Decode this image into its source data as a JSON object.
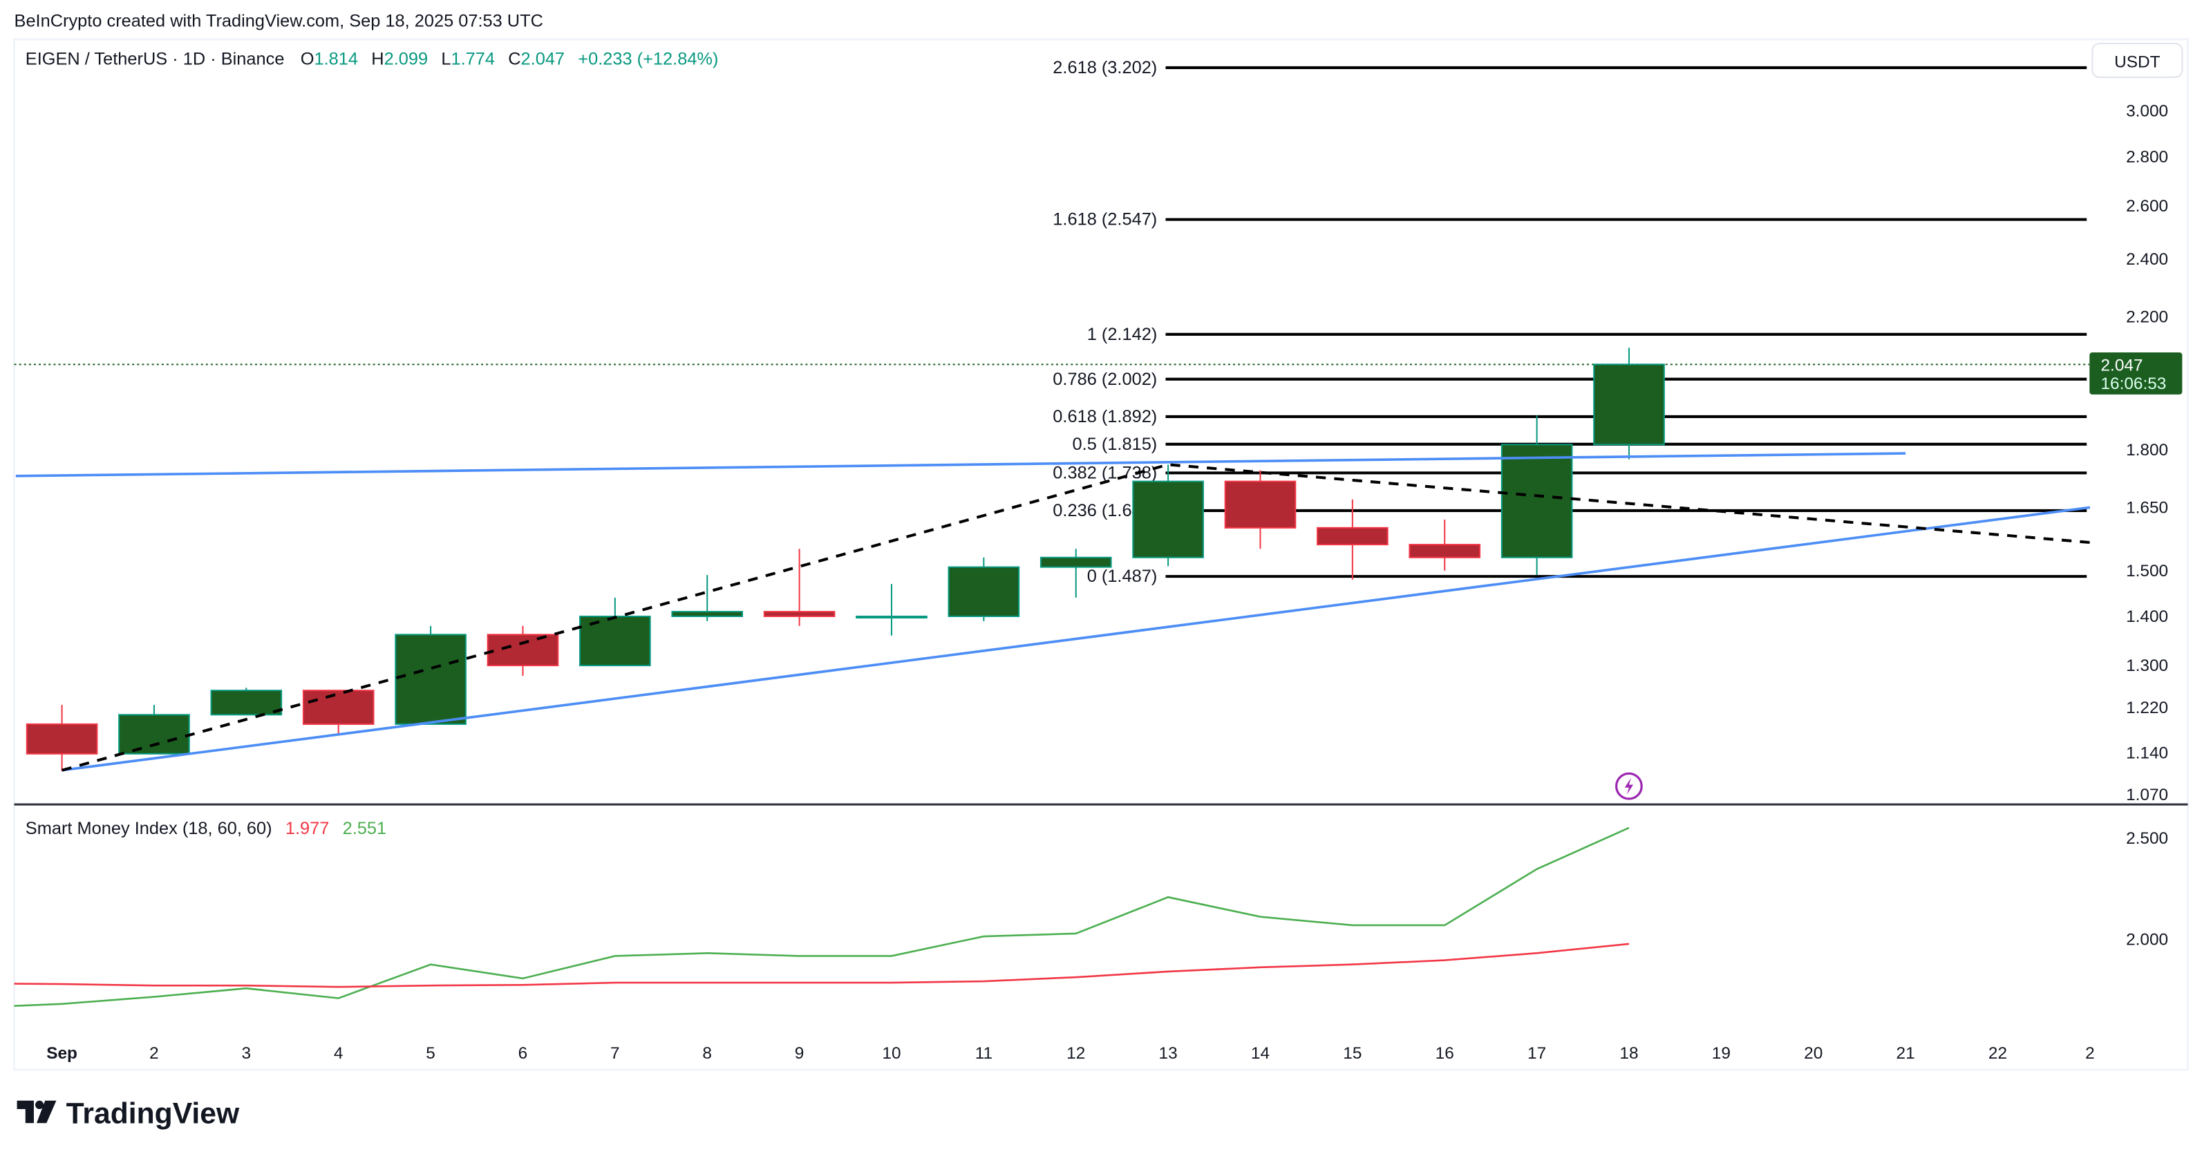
{
  "header": {
    "credit": "BeInCrypto created with TradingView.com, Sep 18, 2025 07:53 UTC"
  },
  "legend": {
    "symbol": "EIGEN / TetherUS · 1D · Binance",
    "o_label": "O",
    "o": "1.814",
    "h_label": "H",
    "h": "2.099",
    "l_label": "L",
    "l": "1.774",
    "c_label": "C",
    "c": "2.047",
    "change": "+0.233 (+12.84%)"
  },
  "price_axis": {
    "currency": "USDT",
    "last_price": "2.047",
    "countdown": "16:06:53"
  },
  "indicator": {
    "name": "Smart Money Index (18, 60, 60)",
    "value_red": "1.977",
    "value_green": "2.551"
  },
  "footer": {
    "logo": "TradingView"
  },
  "colors": {
    "up_fill": "#1b5e20",
    "up_border": "#089981",
    "down_fill": "#b22833",
    "down_border": "#f23645",
    "trendline": "#4c8df6",
    "smi_green": "#4caf50",
    "smi_red": "#f23645",
    "legend_green": "#089981",
    "event_icon": "#9c27b0"
  },
  "event_icon": "lightning-icon",
  "chart_data": [
    {
      "type": "candlestick",
      "scale": "log",
      "ylim": [
        1.07,
        3.3
      ],
      "x_tick_labels": [
        "Sep",
        "2",
        "3",
        "4",
        "5",
        "6",
        "7",
        "8",
        "9",
        "10",
        "11",
        "12",
        "13",
        "14",
        "15",
        "16",
        "17",
        "18",
        "19",
        "20",
        "21",
        "22",
        "2"
      ],
      "y_tick_labels": [
        "3.000",
        "2.800",
        "2.600",
        "2.400",
        "2.200",
        "1.800",
        "1.650",
        "1.500",
        "1.400",
        "1.300",
        "1.220",
        "1.140",
        "1.070"
      ],
      "y_ticks": [
        3.0,
        2.8,
        2.6,
        2.4,
        2.2,
        1.8,
        1.65,
        1.5,
        1.4,
        1.3,
        1.22,
        1.14,
        1.07
      ],
      "candles": [
        {
          "day": 1,
          "o": 1.19,
          "h": 1.225,
          "l": 1.109,
          "c": 1.138
        },
        {
          "day": 2,
          "o": 1.138,
          "h": 1.225,
          "l": 1.138,
          "c": 1.207
        },
        {
          "day": 3,
          "o": 1.207,
          "h": 1.257,
          "l": 1.207,
          "c": 1.252
        },
        {
          "day": 4,
          "o": 1.252,
          "h": 1.252,
          "l": 1.17,
          "c": 1.19
        },
        {
          "day": 5,
          "o": 1.19,
          "h": 1.38,
          "l": 1.19,
          "c": 1.362
        },
        {
          "day": 6,
          "o": 1.362,
          "h": 1.38,
          "l": 1.28,
          "c": 1.3
        },
        {
          "day": 7,
          "o": 1.3,
          "h": 1.44,
          "l": 1.3,
          "c": 1.4
        },
        {
          "day": 8,
          "o": 1.4,
          "h": 1.49,
          "l": 1.39,
          "c": 1.41
        },
        {
          "day": 9,
          "o": 1.41,
          "h": 1.55,
          "l": 1.38,
          "c": 1.4
        },
        {
          "day": 10,
          "o": 1.4,
          "h": 1.47,
          "l": 1.36,
          "c": 1.4
        },
        {
          "day": 11,
          "o": 1.4,
          "h": 1.53,
          "l": 1.39,
          "c": 1.508
        },
        {
          "day": 12,
          "o": 1.508,
          "h": 1.55,
          "l": 1.44,
          "c": 1.53
        },
        {
          "day": 13,
          "o": 1.53,
          "h": 1.76,
          "l": 1.51,
          "c": 1.716
        },
        {
          "day": 14,
          "o": 1.716,
          "h": 1.745,
          "l": 1.55,
          "c": 1.6
        },
        {
          "day": 15,
          "o": 1.6,
          "h": 1.67,
          "l": 1.48,
          "c": 1.56
        },
        {
          "day": 16,
          "o": 1.56,
          "h": 1.62,
          "l": 1.5,
          "c": 1.53
        },
        {
          "day": 17,
          "o": 1.53,
          "h": 1.895,
          "l": 1.49,
          "c": 1.814
        },
        {
          "day": 18,
          "o": 1.814,
          "h": 2.099,
          "l": 1.774,
          "c": 2.047
        }
      ],
      "fib_levels": [
        {
          "label": "2.618 (3.202)",
          "price": 3.202
        },
        {
          "label": "1.618 (2.547)",
          "price": 2.547
        },
        {
          "label": "1 (2.142)",
          "price": 2.142
        },
        {
          "label": "0.786 (2.002)",
          "price": 2.002
        },
        {
          "label": "0.618 (1.892)",
          "price": 1.892
        },
        {
          "label": "0.5 (1.815)",
          "price": 1.815
        },
        {
          "label": "0.382 (1.738)",
          "price": 1.738
        },
        {
          "label": "0.236 (1.642)",
          "price": 1.642
        },
        {
          "label": "0 (1.487)",
          "price": 1.487
        }
      ],
      "trendlines": [
        {
          "style": "solid",
          "color": "#4c8df6",
          "points": [
            [
              0.5,
              1.73
            ],
            [
              21,
              1.79
            ]
          ]
        },
        {
          "style": "solid",
          "color": "#4c8df6",
          "points": [
            [
              1,
              1.11
            ],
            [
              23,
              1.65
            ]
          ]
        },
        {
          "style": "dashed",
          "color": "#000000",
          "points": [
            [
              1,
              1.11
            ],
            [
              13,
              1.76
            ],
            [
              23,
              1.565
            ]
          ]
        }
      ]
    },
    {
      "type": "line",
      "title": "Smart Money Index (18, 60, 60)",
      "x": [
        1,
        2,
        3,
        4,
        5,
        6,
        7,
        8,
        9,
        10,
        11,
        12,
        13,
        14,
        15,
        16,
        17,
        18
      ],
      "y_tick_labels": [
        "2.500",
        "2.000"
      ],
      "y_ticks": [
        2.5,
        2.0
      ],
      "ylim": [
        1.55,
        2.7
      ],
      "series": [
        {
          "color": "#4caf50",
          "values": [
            1.68,
            1.715,
            1.757,
            1.708,
            1.875,
            1.806,
            1.917,
            1.931,
            1.917,
            1.917,
            2.014,
            2.028,
            2.208,
            2.111,
            2.069,
            2.069,
            2.347,
            2.551
          ]
        },
        {
          "color": "#f23645",
          "values": [
            1.778,
            1.771,
            1.771,
            1.764,
            1.771,
            1.774,
            1.785,
            1.785,
            1.785,
            1.785,
            1.792,
            1.812,
            1.84,
            1.861,
            1.875,
            1.896,
            1.931,
            1.977
          ]
        }
      ]
    }
  ]
}
